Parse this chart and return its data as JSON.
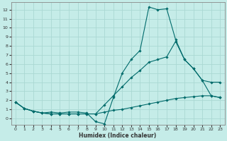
{
  "xlabel": "Humidex (Indice chaleur)",
  "background_color": "#c5ece8",
  "grid_color": "#aad8d3",
  "line_color": "#006b6b",
  "spine_color": "#888888",
  "xlim": [
    -0.5,
    23.5
  ],
  "ylim": [
    -0.7,
    12.8
  ],
  "xticks": [
    0,
    1,
    2,
    3,
    4,
    5,
    6,
    7,
    8,
    9,
    10,
    11,
    12,
    13,
    14,
    15,
    16,
    17,
    18,
    19,
    20,
    21,
    22,
    23
  ],
  "yticks": [
    0,
    1,
    2,
    3,
    4,
    5,
    6,
    7,
    8,
    9,
    10,
    11,
    12
  ],
  "series": [
    {
      "x": [
        0,
        1,
        2,
        3,
        4,
        5,
        6,
        7,
        8,
        9,
        10,
        11,
        12,
        13,
        14,
        15,
        16,
        17,
        18,
        19,
        20,
        21,
        22,
        23
      ],
      "y": [
        1.8,
        1.1,
        0.8,
        0.6,
        0.7,
        0.6,
        0.7,
        0.7,
        0.6,
        -0.35,
        -0.6,
        2.3,
        5.0,
        6.5,
        7.5,
        12.3,
        12.0,
        12.1,
        8.7,
        6.5,
        5.5,
        4.2,
        2.5,
        2.3
      ]
    },
    {
      "x": [
        0,
        1,
        2,
        3,
        4,
        5,
        6,
        7,
        8,
        9,
        10,
        11,
        12,
        13,
        14,
        15,
        16,
        17,
        18,
        19,
        20,
        21,
        22,
        23
      ],
      "y": [
        1.8,
        1.1,
        0.8,
        0.6,
        0.5,
        0.5,
        0.5,
        0.5,
        0.5,
        0.5,
        1.5,
        2.5,
        3.5,
        4.5,
        5.3,
        6.2,
        6.5,
        6.8,
        8.5,
        6.5,
        5.5,
        4.2,
        4.0,
        4.0
      ]
    },
    {
      "x": [
        0,
        1,
        2,
        3,
        4,
        5,
        6,
        7,
        8,
        9,
        10,
        11,
        12,
        13,
        14,
        15,
        16,
        17,
        18,
        19,
        20,
        21,
        22,
        23
      ],
      "y": [
        1.8,
        1.1,
        0.8,
        0.6,
        0.5,
        0.5,
        0.5,
        0.5,
        0.5,
        0.5,
        0.7,
        0.9,
        1.0,
        1.2,
        1.4,
        1.6,
        1.8,
        2.0,
        2.2,
        2.3,
        2.4,
        2.5,
        2.5,
        2.3
      ]
    }
  ]
}
